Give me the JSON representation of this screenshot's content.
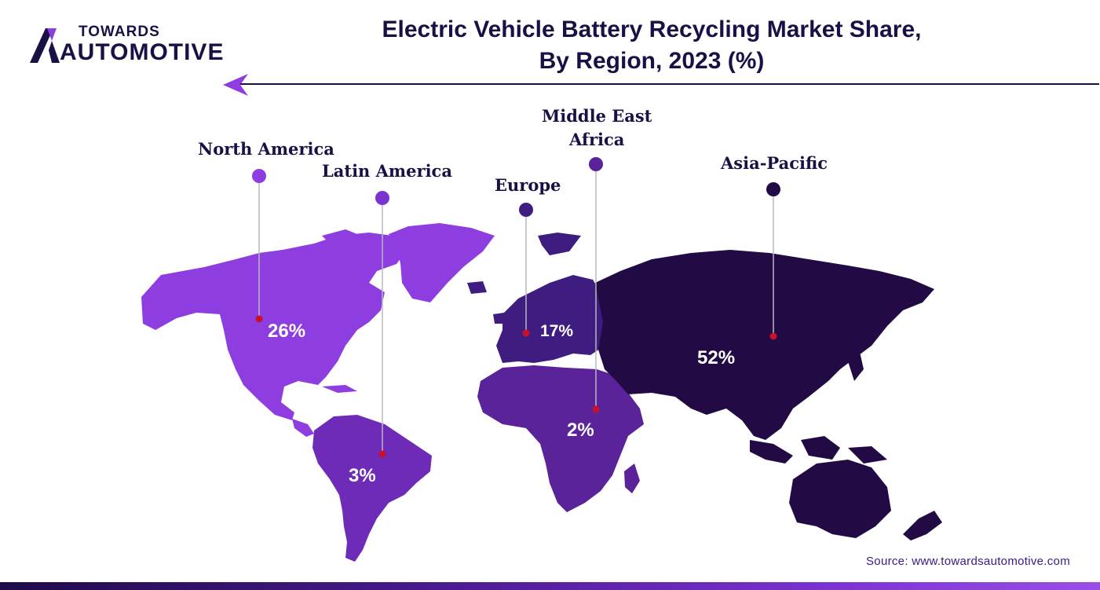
{
  "logo": {
    "line1": "TOWARDS",
    "line2": "AUTOMOTIVE"
  },
  "title": {
    "line1": "Electric Vehicle Battery Recycling Market Share,",
    "line2": "By Region, 2023 (%)"
  },
  "source": "Source: www.towardsautomotive.com",
  "colors": {
    "north_america": "#8e3ee0",
    "latin_america": "#6e2bb8",
    "europe": "#3f1d80",
    "africa_mea": "#5a2399",
    "asia_pacific": "#220a45",
    "marker_dot": "#c8102e",
    "text_dark": "#1a1046"
  },
  "chart_data": {
    "type": "map",
    "title": "Electric Vehicle Battery Recycling Market Share, By Region, 2023 (%)",
    "regions": [
      {
        "name": "North America",
        "value": 26,
        "label": "26%"
      },
      {
        "name": "Latin America",
        "value": 3,
        "label": "3%"
      },
      {
        "name": "Europe",
        "value": 17,
        "label": "17%"
      },
      {
        "name": "Middle East Africa",
        "value": 2,
        "label": "2%"
      },
      {
        "name": "Asia-Pacific",
        "value": 52,
        "label": "52%"
      }
    ]
  },
  "labels": {
    "north_america": "North America",
    "latin_america": "Latin America",
    "europe": "Europe",
    "mea_line1": "Middle East",
    "mea_line2": "Africa",
    "asia_pacific": "Asia-Pacific"
  }
}
